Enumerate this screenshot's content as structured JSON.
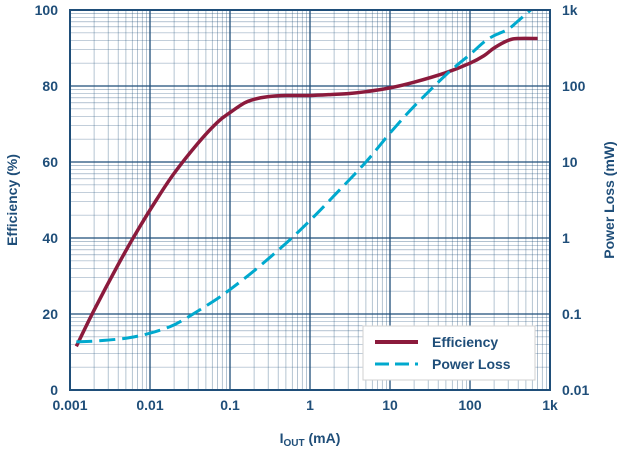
{
  "chart_data": {
    "type": "line",
    "x_scale": "log",
    "xlim": [
      0.001,
      1000
    ],
    "ylim": [
      0,
      100
    ],
    "y2_scale": "log",
    "y2lim": [
      0.01,
      1000
    ],
    "xlabel_main": "I",
    "xlabel_sub": "OUT",
    "xlabel_unit": " (mA)",
    "ylabel": "Efficiency (%)",
    "y2label": "Power Loss (mW)",
    "x_ticks": [
      {
        "value": 0.001,
        "label": "0.001"
      },
      {
        "value": 0.01,
        "label": "0.01"
      },
      {
        "value": 0.1,
        "label": "0.1"
      },
      {
        "value": 1,
        "label": "1"
      },
      {
        "value": 10,
        "label": "10"
      },
      {
        "value": 100,
        "label": "100"
      },
      {
        "value": 1000,
        "label": "1k"
      }
    ],
    "y_ticks": [
      {
        "value": 0,
        "label": "0"
      },
      {
        "value": 20,
        "label": "20"
      },
      {
        "value": 40,
        "label": "40"
      },
      {
        "value": 60,
        "label": "60"
      },
      {
        "value": 80,
        "label": "80"
      },
      {
        "value": 100,
        "label": "100"
      }
    ],
    "y2_ticks": [
      {
        "value": 0.01,
        "label": "0.01"
      },
      {
        "value": 0.1,
        "label": "0.1"
      },
      {
        "value": 1,
        "label": "1"
      },
      {
        "value": 10,
        "label": "10"
      },
      {
        "value": 100,
        "label": "100"
      },
      {
        "value": 1000,
        "label": "1k"
      }
    ],
    "legend_position": "bottom-right",
    "series": [
      {
        "name": "Efficiency",
        "axis": "left",
        "style": "solid",
        "color": "#8b1a3c",
        "x": [
          0.0012,
          0.002,
          0.004,
          0.007,
          0.012,
          0.02,
          0.04,
          0.07,
          0.1,
          0.15,
          0.2,
          0.3,
          0.5,
          1,
          2,
          3,
          5,
          10,
          20,
          50,
          100,
          150,
          200,
          300,
          400,
          700
        ],
        "y": [
          11.5,
          21,
          33,
          42,
          50,
          57,
          65,
          70.5,
          73,
          75.5,
          76.5,
          77.2,
          77.5,
          77.5,
          77.8,
          78,
          78.5,
          79.5,
          81,
          83.5,
          86,
          88,
          90,
          92,
          92.5,
          92.5
        ]
      },
      {
        "name": "Power Loss",
        "axis": "right",
        "style": "dashed",
        "color": "#00a9ce",
        "x": [
          0.0012,
          0.002,
          0.005,
          0.01,
          0.02,
          0.04,
          0.07,
          0.1,
          0.2,
          0.5,
          1,
          2,
          5,
          10,
          20,
          50,
          100,
          150,
          200,
          300,
          400,
          700
        ],
        "y": [
          0.043,
          0.044,
          0.048,
          0.056,
          0.072,
          0.11,
          0.16,
          0.21,
          0.37,
          0.85,
          1.7,
          3.6,
          10,
          24,
          54,
          140,
          260,
          380,
          460,
          560,
          720,
          1200
        ]
      }
    ]
  }
}
